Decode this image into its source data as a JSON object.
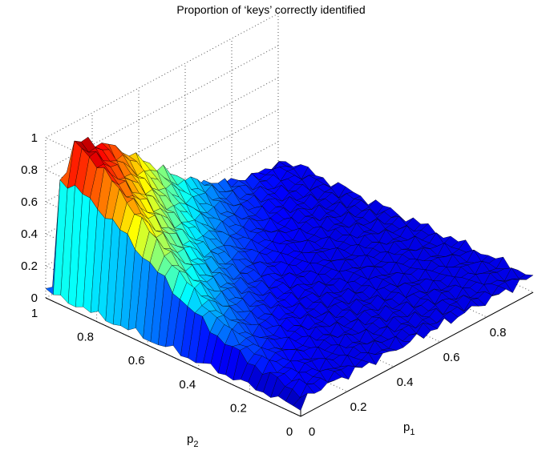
{
  "chart_data": {
    "type": "surface",
    "title": "Proportion of ‘keys’ correctly identified",
    "x_label": "p",
    "x_label_sub": "1",
    "y_label": "p",
    "y_label_sub": "2",
    "z_ticks": [
      "0",
      "0.2",
      "0.4",
      "0.6",
      "0.8",
      "1"
    ],
    "x_ticks": [
      "0",
      "0.2",
      "0.4",
      "0.6",
      "0.8"
    ],
    "y_ticks": [
      "0",
      "0.2",
      "0.4",
      "0.6",
      "0.8",
      "1"
    ],
    "x_range": [
      0,
      1
    ],
    "y_range": [
      0,
      1
    ],
    "z_range": [
      0,
      1
    ],
    "grid": true,
    "colormap": "jet",
    "surface_model": "z = 1 when p1 + p2 is small, falling to about 0.1 as p1 and p2 approach 1; value near 0.05 along edges p1 = 0 and p2 = 0"
  }
}
